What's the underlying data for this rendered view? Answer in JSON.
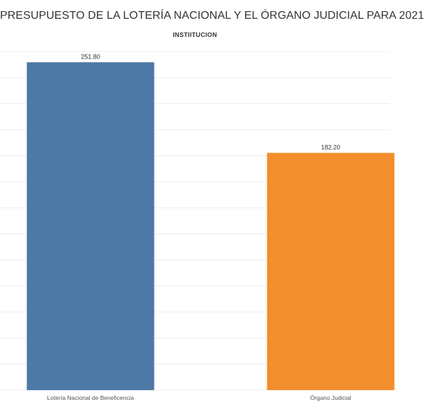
{
  "chart_data": {
    "type": "bar",
    "title": "PRESUPUESTO DE LA LOTERÍA NACIONAL Y EL ÓRGANO JUDICIAL PARA 2021",
    "subtitle": "INSTIITUCION",
    "categories": [
      "Lotería Nacional de Beneficencia",
      "Órgano Judicial"
    ],
    "values": [
      251.8,
      182.2
    ],
    "value_labels": [
      "251.80",
      "182.20"
    ],
    "colors": [
      "#4e79a7",
      "#f28e2b"
    ],
    "xlabel": "",
    "ylabel": "",
    "ylim": [
      0,
      260
    ],
    "grid": true,
    "legend": "none"
  }
}
